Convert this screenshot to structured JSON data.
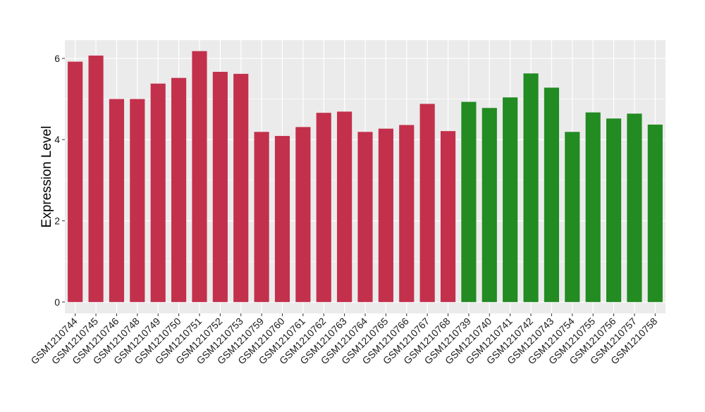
{
  "chart_data": {
    "type": "bar",
    "ylabel": "Expression Level",
    "xlabel": "",
    "ylim": [
      -0.28,
      6.45
    ],
    "yticks": [
      0,
      2,
      4,
      6
    ],
    "grid": true,
    "legend": "none",
    "colors": {
      "group1": "#C3304B",
      "group2": "#228B22",
      "panel": "#EBEBEB",
      "grid": "#FFFFFF"
    },
    "categories": [
      "GSM1210744",
      "GSM1210745",
      "GSM1210746",
      "GSM1210748",
      "GSM1210749",
      "GSM1210750",
      "GSM1210751",
      "GSM1210752",
      "GSM1210753",
      "GSM1210759",
      "GSM1210760",
      "GSM1210761",
      "GSM1210762",
      "GSM1210763",
      "GSM1210764",
      "GSM1210765",
      "GSM1210766",
      "GSM1210767",
      "GSM1210768",
      "GSM1210739",
      "GSM1210740",
      "GSM1210741",
      "GSM1210742",
      "GSM1210743",
      "GSM1210754",
      "GSM1210755",
      "GSM1210756",
      "GSM1210757",
      "GSM1210758"
    ],
    "values": [
      5.92,
      6.07,
      5.0,
      5.0,
      5.38,
      5.52,
      6.18,
      5.67,
      5.62,
      4.19,
      4.09,
      4.31,
      4.66,
      4.69,
      4.19,
      4.27,
      4.36,
      4.88,
      4.21,
      4.93,
      4.78,
      5.04,
      5.63,
      5.28,
      4.19,
      4.67,
      4.52,
      4.64,
      4.37
    ],
    "groups": [
      "group1",
      "group1",
      "group1",
      "group1",
      "group1",
      "group1",
      "group1",
      "group1",
      "group1",
      "group1",
      "group1",
      "group1",
      "group1",
      "group1",
      "group1",
      "group1",
      "group1",
      "group1",
      "group1",
      "group2",
      "group2",
      "group2",
      "group2",
      "group2",
      "group2",
      "group2",
      "group2",
      "group2",
      "group2"
    ]
  }
}
